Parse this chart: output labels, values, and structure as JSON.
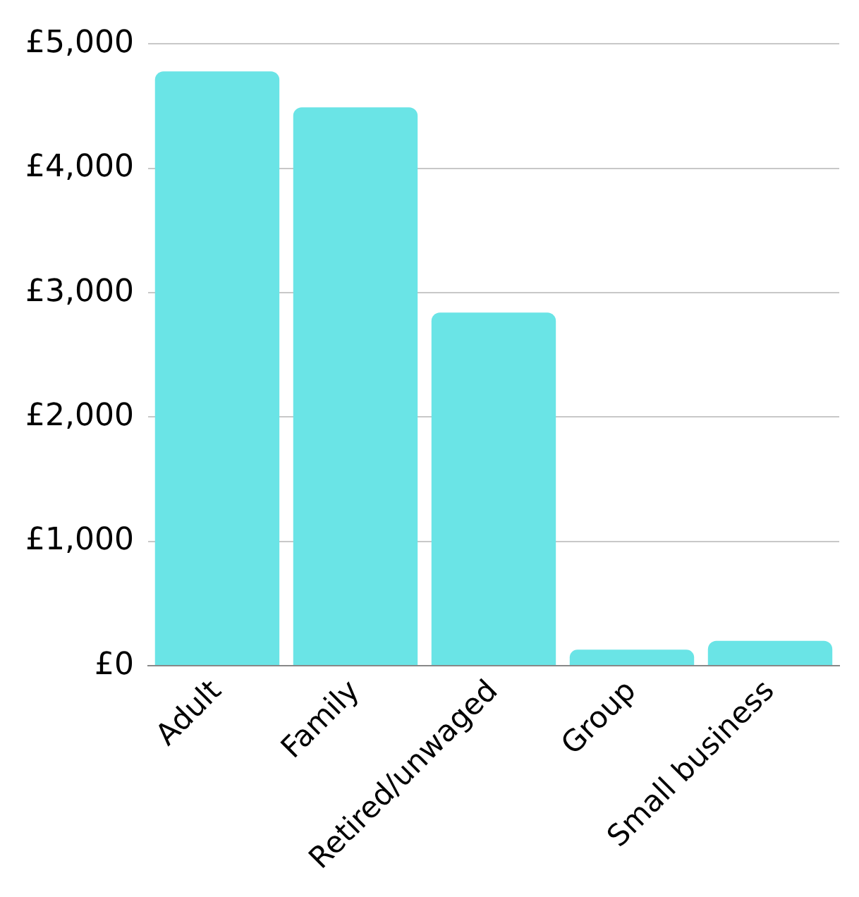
{
  "chart_data": {
    "type": "bar",
    "categories": [
      "Adult",
      "Family",
      "Retired/unwaged",
      "Group",
      "Small business"
    ],
    "values": [
      4780,
      4490,
      2840,
      130,
      200
    ],
    "color": "#6ae4e6",
    "ylim": [
      0,
      5000
    ],
    "yticks": [
      {
        "value": 0,
        "label": "£0"
      },
      {
        "value": 1000,
        "label": "£1,000"
      },
      {
        "value": 2000,
        "label": "£2,000"
      },
      {
        "value": 3000,
        "label": "£3,000"
      },
      {
        "value": 4000,
        "label": "£4,000"
      },
      {
        "value": 5000,
        "label": "£5,000"
      }
    ],
    "grid": "y",
    "legend": false
  }
}
